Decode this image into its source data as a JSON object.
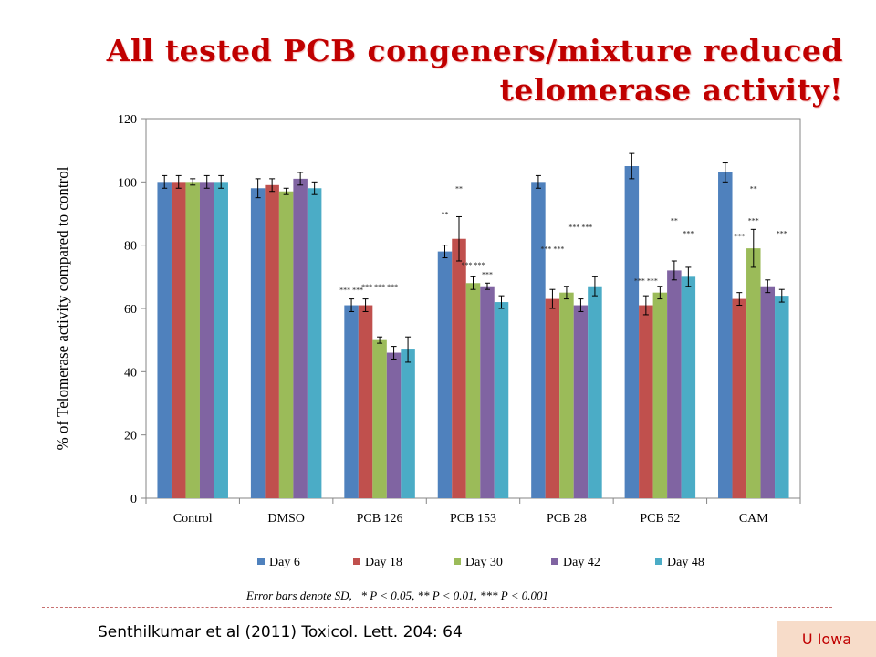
{
  "title_lines": [
    "All tested PCB congeners/mixture reduced",
    "telomerase activity!"
  ],
  "note": "Error bars denote SD,   * P < 0.05, ** P < 0.01, *** P < 0.001",
  "citation": "Senthilkumar et al (2011) Toxicol. Lett. 204: 64",
  "badge": "U Iowa",
  "colors": {
    "title": "#c00000",
    "divider": "#c87070",
    "badge_bg": "#f7dcc9"
  },
  "chart_data": {
    "type": "bar",
    "title": "",
    "xlabel": "",
    "ylabel": "% of Telomerase activity compared to control",
    "ylim": [
      0,
      120
    ],
    "yticks": [
      0,
      20,
      40,
      60,
      80,
      100,
      120
    ],
    "grid": false,
    "legend_position": "bottom",
    "categories": [
      "Control",
      "DMSO",
      "PCB 126",
      "PCB 153",
      "PCB 28",
      "PCB 52",
      "CAM"
    ],
    "series": [
      {
        "name": "Day 6",
        "color": "#4f81bd",
        "values": [
          100,
          98,
          61,
          78,
          100,
          105,
          103
        ],
        "errors": [
          2,
          3,
          2,
          2,
          2,
          4,
          3
        ]
      },
      {
        "name": "Day 18",
        "color": "#c0504d",
        "values": [
          100,
          99,
          61,
          82,
          63,
          61,
          63
        ],
        "errors": [
          2,
          2,
          2,
          7,
          3,
          3,
          2
        ]
      },
      {
        "name": "Day 30",
        "color": "#9bbb59",
        "values": [
          100,
          97,
          50,
          68,
          65,
          65,
          79
        ],
        "errors": [
          1,
          1,
          1,
          2,
          2,
          2,
          6
        ]
      },
      {
        "name": "Day 42",
        "color": "#8064a2",
        "values": [
          100,
          101,
          46,
          67,
          61,
          72,
          67
        ],
        "errors": [
          2,
          2,
          2,
          1,
          2,
          3,
          2
        ]
      },
      {
        "name": "Day 48",
        "color": "#4bacc6",
        "values": [
          100,
          98,
          47,
          62,
          67,
          70,
          64
        ],
        "errors": [
          2,
          2,
          4,
          2,
          3,
          3,
          2
        ]
      }
    ],
    "annotations": [
      {
        "text": "*** ***",
        "category": "PCB 126",
        "series": 0,
        "y": 65
      },
      {
        "text": "*** *** ***",
        "category": "PCB 126",
        "series": 2,
        "y": 66
      },
      {
        "text": "**",
        "category": "PCB 153",
        "series": 0,
        "y": 89
      },
      {
        "text": "**",
        "category": "PCB 153",
        "series": 1,
        "y": 97
      },
      {
        "text": "*** ***",
        "category": "PCB 153",
        "series": 2,
        "y": 73
      },
      {
        "text": "***",
        "category": "PCB 153",
        "series": 3,
        "y": 70
      },
      {
        "text": "*** ***",
        "category": "PCB 28",
        "series": 1,
        "y": 78
      },
      {
        "text": "*** ***",
        "category": "PCB 28",
        "series": 3,
        "y": 85
      },
      {
        "text": "*** ***",
        "category": "PCB 52",
        "series": 1,
        "y": 68
      },
      {
        "text": "**",
        "category": "PCB 52",
        "series": 3,
        "y": 87
      },
      {
        "text": "***",
        "category": "PCB 52",
        "series": 4,
        "y": 83
      },
      {
        "text": "***",
        "category": "CAM",
        "series": 1,
        "y": 82
      },
      {
        "text": "**",
        "category": "CAM",
        "series": 2,
        "y": 97
      },
      {
        "text": "***",
        "category": "CAM",
        "series": 2,
        "y": 87
      },
      {
        "text": "***",
        "category": "CAM",
        "series": 4,
        "y": 83
      }
    ]
  }
}
